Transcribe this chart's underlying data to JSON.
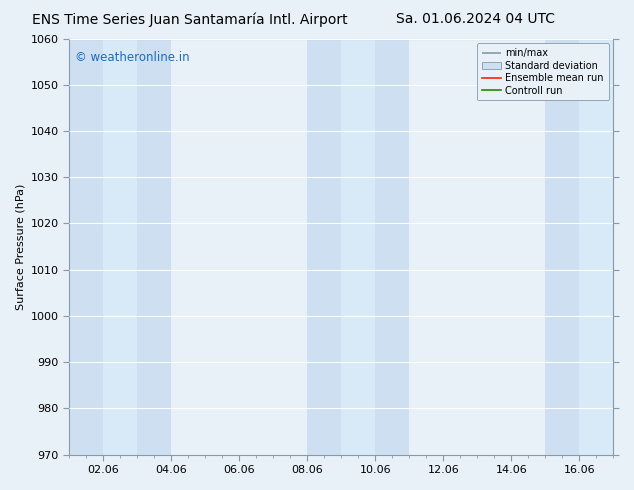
{
  "title_left": "ENS Time Series Juan Santamaría Intl. Airport",
  "title_right": "Sa. 01.06.2024 04 UTC",
  "ylabel": "Surface Pressure (hPa)",
  "ylim": [
    970,
    1060
  ],
  "yticks": [
    970,
    980,
    990,
    1000,
    1010,
    1020,
    1030,
    1040,
    1050,
    1060
  ],
  "xtick_labels": [
    "02.06",
    "04.06",
    "06.06",
    "08.06",
    "10.06",
    "12.06",
    "14.06",
    "16.06"
  ],
  "xtick_positions": [
    1,
    3,
    5,
    7,
    9,
    11,
    13,
    15
  ],
  "watermark_text": "© weatheronline.in",
  "watermark_color": "#1a6ebd",
  "shaded_outer": [
    {
      "xmin": 0,
      "xmax": 1.0
    },
    {
      "xmin": 2.0,
      "xmax": 3.0
    },
    {
      "xmin": 7.0,
      "xmax": 8.0
    },
    {
      "xmin": 9.0,
      "xmax": 10.0
    },
    {
      "xmin": 14.0,
      "xmax": 15.0
    },
    {
      "xmin": 16.0,
      "xmax": 16.5
    }
  ],
  "shaded_inner": [
    {
      "xmin": 1.0,
      "xmax": 2.0
    },
    {
      "xmin": 8.0,
      "xmax": 9.0
    },
    {
      "xmin": 15.0,
      "xmax": 16.0
    }
  ],
  "shaded_bands": [
    {
      "x1_outer": 0.0,
      "x2_outer": 1.0,
      "x1_inner": 1.0,
      "x2_inner": 2.0,
      "x3_outer": 2.0,
      "x4_outer": 3.0
    },
    {
      "x1_outer": 7.0,
      "x2_outer": 8.0,
      "x1_inner": 8.0,
      "x2_inner": 9.0,
      "x3_outer": 9.0,
      "x4_outer": 10.0
    },
    {
      "x1_outer": 14.0,
      "x2_outer": 15.0,
      "x1_inner": 15.0,
      "x2_inner": 16.0,
      "x3_outer": 16.0,
      "x4_outer": 16.5
    }
  ],
  "color_minmax": "#cddff0",
  "color_std": "#d8eaf8",
  "bg_color": "#e8f0f8",
  "plot_bg_color": "#e8f0f8",
  "spine_color": "#8899aa",
  "grid_color": "#ffffff",
  "legend_labels": [
    "min/max",
    "Standard deviation",
    "Ensemble mean run",
    "Controll run"
  ],
  "title_fontsize": 10,
  "label_fontsize": 8,
  "tick_fontsize": 8
}
